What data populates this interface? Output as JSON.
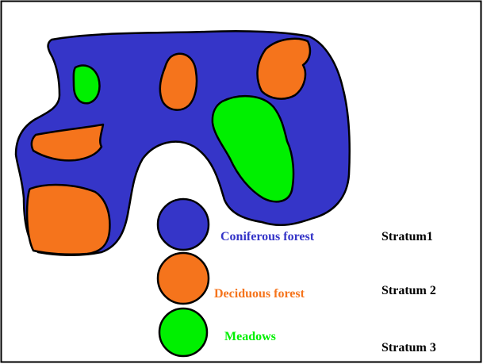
{
  "legend": [
    {
      "label": "Coniferous forest",
      "stratum": "Stratum1",
      "color": "#3535c8"
    },
    {
      "label": "Deciduous forest",
      "stratum": "Stratum 2",
      "color": "#f5741c"
    },
    {
      "label": "Meadows",
      "stratum": "Stratum 3",
      "color": "#00f000"
    }
  ]
}
